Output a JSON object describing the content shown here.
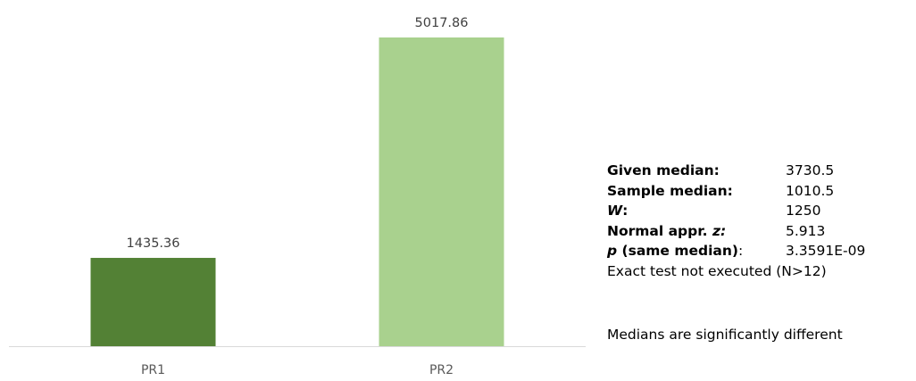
{
  "chart_data": {
    "type": "bar",
    "categories": [
      "PR1",
      "PR2"
    ],
    "values": [
      1435.36,
      5017.86
    ],
    "data_labels": [
      "1435.36",
      "5017.86"
    ],
    "colors": [
      "#538135",
      "#a9d18e"
    ],
    "title": "",
    "xlabel": "",
    "ylabel": "",
    "ylim": [
      0,
      5017.86
    ],
    "grid": false,
    "legend": "none"
  },
  "stats": {
    "given_median_label": "Given median:",
    "given_median_value": "3730.5",
    "sample_median_label": "Sample median:",
    "sample_median_value": "1010.5",
    "w_symbol": "W",
    "w_colon": ":",
    "w_value": "1250",
    "normal_label": "Normal appr.",
    "normal_symbol": "z",
    "normal_colon": ":",
    "normal_value": "5.913",
    "p_symbol": "p",
    "p_label": "(same median)",
    "p_colon": ":",
    "p_value": "3.3591E-09",
    "exact_note": "Exact test not executed (N>12)",
    "conclusion": "Medians are significantly different"
  }
}
